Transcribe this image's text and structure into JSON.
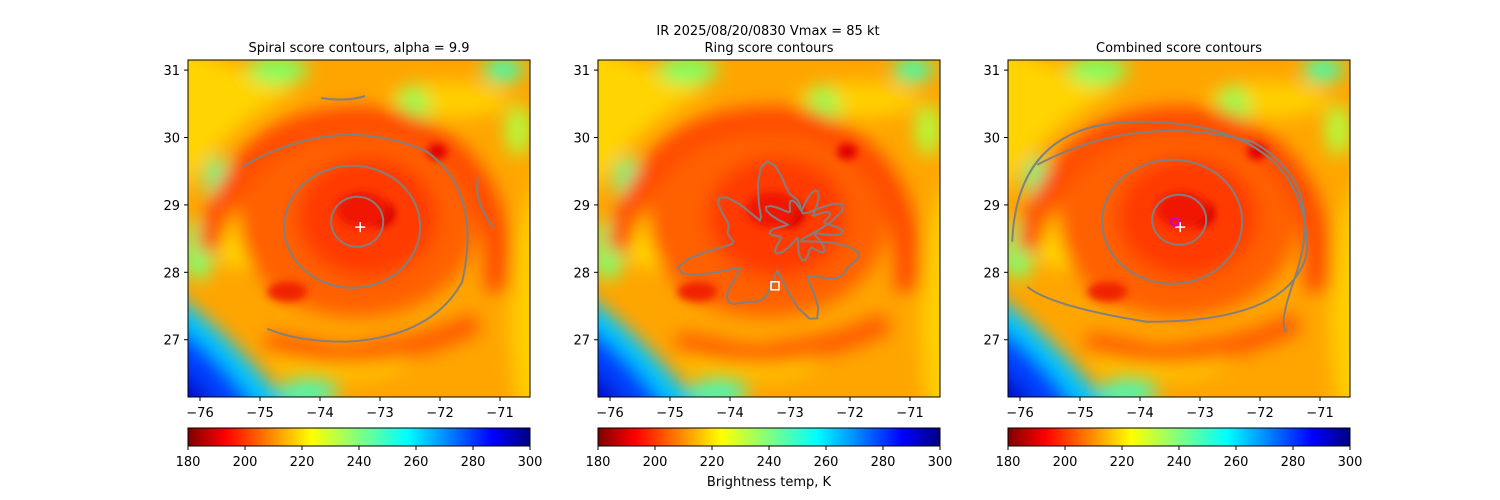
{
  "figure": {
    "suptitle_line1": "IR  2025/08/20/0830    Vmax = 85 kt",
    "colorbar_label": "Brightness temp, K"
  },
  "chart_data": [
    {
      "type": "heatmap",
      "title": "Spiral score contours, alpha =  9.9",
      "field": "IR brightness temperature (K)",
      "xlim": [
        -76.2,
        -70.5
      ],
      "ylim": [
        26.15,
        31.15
      ],
      "xticks": [
        -76,
        -75,
        -74,
        -73,
        -72,
        -71
      ],
      "yticks": [
        27,
        28,
        29,
        30,
        31
      ],
      "colorbar": {
        "min": 180,
        "max": 300,
        "ticks": [
          180,
          200,
          220,
          240,
          260,
          280,
          300
        ],
        "colormap": "jet_r"
      },
      "storm_center": {
        "lon": -73.38,
        "lat": 28.75
      },
      "contours": "spiral",
      "markers": [
        {
          "kind": "plus",
          "lon": -73.33,
          "lat": 28.67,
          "color": "#ffffff"
        }
      ]
    },
    {
      "type": "heatmap",
      "title": "Ring score contours",
      "field": "IR brightness temperature (K)",
      "xlim": [
        -76.2,
        -70.5
      ],
      "ylim": [
        26.15,
        31.15
      ],
      "xticks": [
        -76,
        -75,
        -74,
        -73,
        -72,
        -71
      ],
      "yticks": [
        27,
        28,
        29,
        30,
        31
      ],
      "colorbar": {
        "min": 180,
        "max": 300,
        "ticks": [
          180,
          200,
          220,
          240,
          260,
          280,
          300
        ],
        "colormap": "jet_r"
      },
      "storm_center": {
        "lon": -73.38,
        "lat": 28.75
      },
      "contours": "ring",
      "markers": [
        {
          "kind": "square",
          "lon": -73.25,
          "lat": 27.8,
          "color": "#ffffff"
        }
      ]
    },
    {
      "type": "heatmap",
      "title": "Combined score contours",
      "field": "IR brightness temperature (K)",
      "xlim": [
        -76.2,
        -70.5
      ],
      "ylim": [
        26.15,
        31.15
      ],
      "xticks": [
        -76,
        -75,
        -74,
        -73,
        -72,
        -71
      ],
      "yticks": [
        27,
        28,
        29,
        30,
        31
      ],
      "colorbar": {
        "min": 180,
        "max": 300,
        "ticks": [
          180,
          200,
          220,
          240,
          260,
          280,
          300
        ],
        "colormap": "jet_r"
      },
      "storm_center": {
        "lon": -73.38,
        "lat": 28.75
      },
      "contours": "combined",
      "markers": [
        {
          "kind": "plus",
          "lon": -73.33,
          "lat": 28.67,
          "color": "#ffffff"
        },
        {
          "kind": "circle",
          "lon": -73.42,
          "lat": 28.75,
          "color": "#cc00cc"
        }
      ]
    }
  ],
  "colors": {
    "contour": "#808080",
    "axes": "#000000",
    "background": "#ffffff"
  }
}
